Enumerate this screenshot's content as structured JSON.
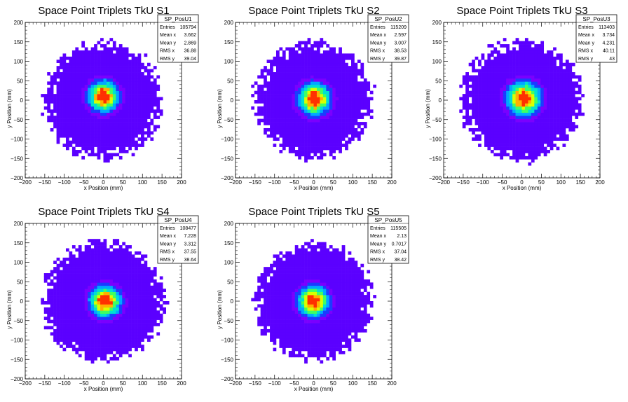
{
  "chart_data": [
    {
      "type": "heatmap",
      "title": "Space Point Triplets TkU S1",
      "xlabel": "x Position (mm)",
      "ylabel": "y Position (mm)",
      "xlim": [
        -200,
        200
      ],
      "ylim": [
        -200,
        200
      ],
      "x_ticks": [
        "−200",
        "−150",
        "−100",
        "−50",
        "0",
        "50",
        "100",
        "150",
        "200"
      ],
      "y_ticks": [
        "−200",
        "−150",
        "−100",
        "−50",
        "0",
        "50",
        "100",
        "150",
        "200"
      ],
      "stats": {
        "name": "SP_PosU1",
        "rows": [
          {
            "label": "Entries",
            "value": "105794"
          },
          {
            "label": "Mean x",
            "value": "3.662"
          },
          {
            "label": "Mean y",
            "value": "2.869"
          },
          {
            "label": "RMS x",
            "value": "36.88"
          },
          {
            "label": "RMS y",
            "value": "39.04"
          }
        ]
      },
      "entries": 105794,
      "mean_x": 3.662,
      "mean_y": 2.869,
      "rms_x": 36.88,
      "rms_y": 39.04,
      "peak": [
        0,
        10
      ],
      "radius": 150
    },
    {
      "type": "heatmap",
      "title": "Space Point Triplets TkU S2",
      "xlabel": "x Position (mm)",
      "ylabel": "y Position (mm)",
      "xlim": [
        -200,
        200
      ],
      "ylim": [
        -200,
        200
      ],
      "x_ticks": [
        "−200",
        "−150",
        "−100",
        "−50",
        "0",
        "50",
        "100",
        "150",
        "200"
      ],
      "y_ticks": [
        "−200",
        "−150",
        "−100",
        "−50",
        "0",
        "50",
        "100",
        "150",
        "200"
      ],
      "stats": {
        "name": "SP_PosU2",
        "rows": [
          {
            "label": "Entries",
            "value": "115209"
          },
          {
            "label": "Mean x",
            "value": "2.597"
          },
          {
            "label": "Mean y",
            "value": "3.007"
          },
          {
            "label": "RMS x",
            "value": "38.53"
          },
          {
            "label": "RMS y",
            "value": "39.87"
          }
        ]
      },
      "entries": 115209,
      "mean_x": 2.597,
      "mean_y": 3.007,
      "rms_x": 38.53,
      "rms_y": 39.87,
      "peak": [
        2,
        3
      ],
      "radius": 150
    },
    {
      "type": "heatmap",
      "title": "Space Point Triplets TkU S3",
      "xlabel": "x Position (mm)",
      "ylabel": "y Position (mm)",
      "xlim": [
        -200,
        200
      ],
      "ylim": [
        -200,
        200
      ],
      "x_ticks": [
        "−200",
        "−150",
        "−100",
        "−50",
        "0",
        "50",
        "100",
        "150",
        "200"
      ],
      "y_ticks": [
        "−200",
        "−150",
        "−100",
        "−50",
        "0",
        "50",
        "100",
        "150",
        "200"
      ],
      "stats": {
        "name": "SP_PosU3",
        "rows": [
          {
            "label": "Entries",
            "value": "113403"
          },
          {
            "label": "Mean x",
            "value": "3.734"
          },
          {
            "label": "Mean y",
            "value": "4.231"
          },
          {
            "label": "RMS x",
            "value": "40.11"
          },
          {
            "label": "RMS y",
            "value": "43"
          }
        ]
      },
      "entries": 113403,
      "mean_x": 3.734,
      "mean_y": 4.231,
      "rms_x": 40.11,
      "rms_y": 43,
      "peak": [
        5,
        5
      ],
      "radius": 155
    },
    {
      "type": "heatmap",
      "title": "Space Point Triplets TkU S4",
      "xlabel": "x Position (mm)",
      "ylabel": "y Position (mm)",
      "xlim": [
        -200,
        200
      ],
      "ylim": [
        -200,
        200
      ],
      "x_ticks": [
        "−200",
        "−150",
        "−100",
        "−50",
        "0",
        "50",
        "100",
        "150",
        "200"
      ],
      "y_ticks": [
        "−200",
        "−150",
        "−100",
        "−50",
        "0",
        "50",
        "100",
        "150",
        "200"
      ],
      "stats": {
        "name": "SP_PosU4",
        "rows": [
          {
            "label": "Entries",
            "value": "108477"
          },
          {
            "label": "Mean x",
            "value": "7.228"
          },
          {
            "label": "Mean y",
            "value": "3.312"
          },
          {
            "label": "RMS x",
            "value": "37.55"
          },
          {
            "label": "RMS y",
            "value": "38.64"
          }
        ]
      },
      "entries": 108477,
      "mean_x": 7.228,
      "mean_y": 3.312,
      "rms_x": 37.55,
      "rms_y": 38.64,
      "peak": [
        5,
        0
      ],
      "radius": 155
    },
    {
      "type": "heatmap",
      "title": "Space Point Triplets TkU S5",
      "xlabel": "x Position (mm)",
      "ylabel": "y Position (mm)",
      "xlim": [
        -200,
        200
      ],
      "ylim": [
        -200,
        200
      ],
      "x_ticks": [
        "−200",
        "−150",
        "−100",
        "−50",
        "0",
        "50",
        "100",
        "150",
        "200"
      ],
      "y_ticks": [
        "−200",
        "−150",
        "−100",
        "−50",
        "0",
        "50",
        "100",
        "150",
        "200"
      ],
      "stats": {
        "name": "SP_PosU5",
        "rows": [
          {
            "label": "Entries",
            "value": "115505"
          },
          {
            "label": "Mean x",
            "value": "2.13"
          },
          {
            "label": "Mean y",
            "value": "0.7017"
          },
          {
            "label": "RMS x",
            "value": "37.04"
          },
          {
            "label": "RMS y",
            "value": "38.42"
          }
        ]
      },
      "entries": 115505,
      "mean_x": 2.13,
      "mean_y": 0.7017,
      "rms_x": 37.04,
      "rms_y": 38.42,
      "peak": [
        0,
        0
      ],
      "radius": 150
    }
  ],
  "colors": {
    "palette": [
      "#5b00ff",
      "#7a00ff",
      "#1a3cff",
      "#00a8ff",
      "#00e0d0",
      "#40ff60",
      "#d8ff00",
      "#ffb000",
      "#ff3000"
    ],
    "frame": "#000000"
  }
}
